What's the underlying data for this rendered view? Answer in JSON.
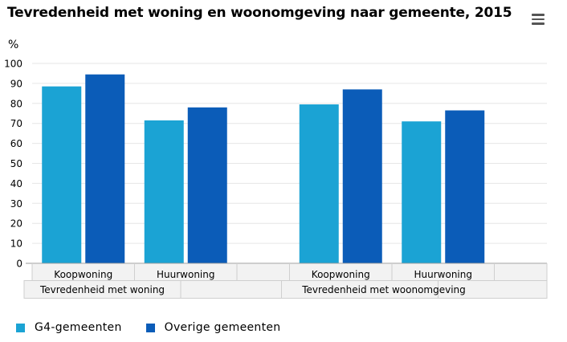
{
  "chart_data": {
    "type": "bar",
    "title": "Tevredenheid met woning en woonomgeving naar gemeente, 2015",
    "unit_label": "%",
    "ylim": [
      0,
      100
    ],
    "yticks": [
      "0",
      "10",
      "20",
      "30",
      "40",
      "50",
      "60",
      "70",
      "80",
      "90",
      "100"
    ],
    "grid": true,
    "legend_position": "bottom-left",
    "groups": [
      {
        "label": "Tevredenheid met woning",
        "categories": [
          "Koopwoning",
          "Huurwoning"
        ]
      },
      {
        "label": "Tevredenheid met woonomgeving",
        "categories": [
          "Koopwoning",
          "Huurwoning"
        ]
      }
    ],
    "series": [
      {
        "name": "G4-gemeenten",
        "color": "#1ba3d4",
        "values": [
          88.5,
          71.5,
          79.5,
          71
        ]
      },
      {
        "name": "Overige gemeenten",
        "color": "#0b5cb8",
        "values": [
          94.5,
          78,
          87,
          76.5
        ]
      }
    ]
  }
}
